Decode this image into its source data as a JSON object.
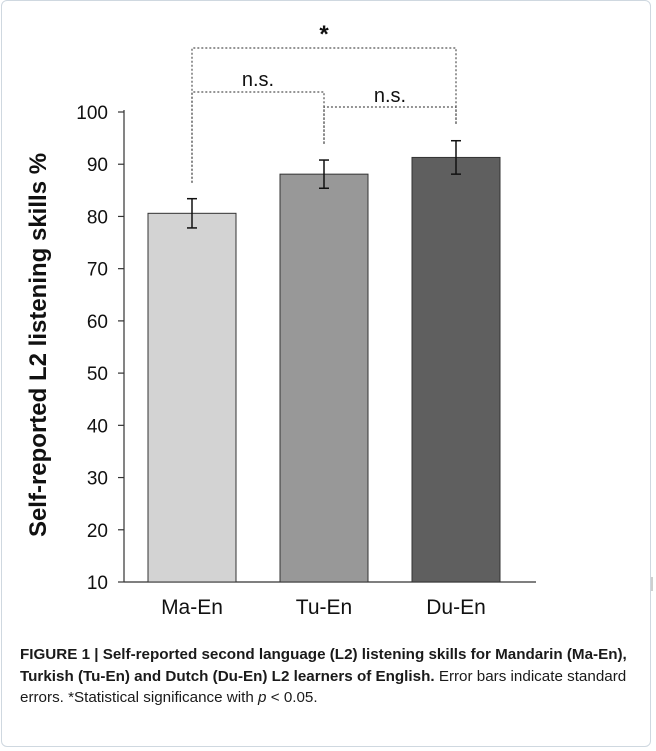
{
  "chart_data": {
    "type": "bar",
    "categories": [
      "Ma-En",
      "Tu-En",
      "Du-En"
    ],
    "values": [
      80.6,
      88.1,
      91.3
    ],
    "error_bars": [
      2.8,
      2.7,
      3.2
    ],
    "ylabel": "Self-reported L2 listening skills %",
    "xlabel": "",
    "ylim": [
      10,
      100
    ],
    "yticks": [
      10,
      20,
      30,
      40,
      50,
      60,
      70,
      80,
      90,
      100
    ],
    "bar_colors": [
      "#d3d3d3",
      "#989898",
      "#5f5f5f"
    ],
    "bar_edge_color": "#333333",
    "grid": false,
    "legend": "none",
    "significance": [
      {
        "from": "Ma-En",
        "to": "Du-En",
        "label": "*"
      },
      {
        "from": "Ma-En",
        "to": "Tu-En",
        "label": "n.s."
      },
      {
        "from": "Tu-En",
        "to": "Du-En",
        "label": "n.s."
      }
    ]
  },
  "caption": {
    "lead": "FIGURE 1 | Self-reported second language (L2) listening skills for Mandarin (Ma-En), Turkish (Tu-En) and Dutch (Du-En) L2 learners of English.",
    "body": "Error bars indicate standard errors. *Statistical significance with",
    "p_symbol": "p",
    "p_tail": "< 0.05."
  }
}
